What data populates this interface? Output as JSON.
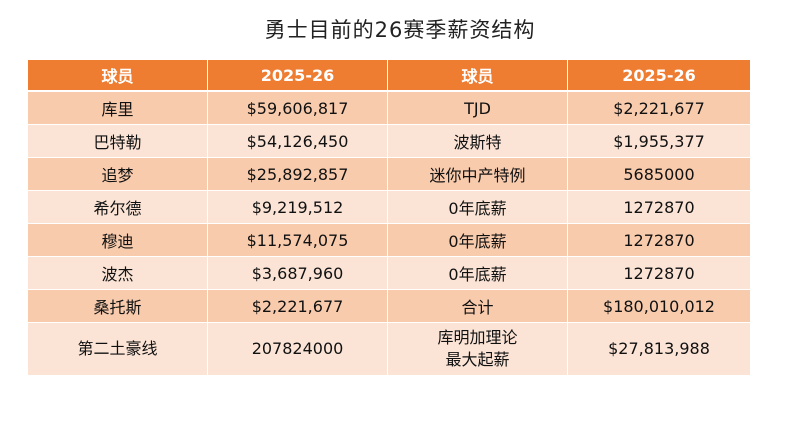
{
  "title": "勇士目前的26赛季薪资结构",
  "headers": [
    "球员",
    "2025-26",
    "球员",
    "2025-26"
  ],
  "rows": [
    [
      "库里",
      "$59,606,817",
      "TJD",
      "$2,221,677"
    ],
    [
      "巴特勒",
      "$54,126,450",
      "波斯特",
      "$1,955,377"
    ],
    [
      "追梦",
      "$25,892,857",
      "迷你中产特例",
      "5685000"
    ],
    [
      "希尔德",
      "$9,219,512",
      "0年底薪",
      "1272870"
    ],
    [
      "穆迪",
      "$11,574,075",
      "0年底薪",
      "1272870"
    ],
    [
      "波杰",
      "$3,687,960",
      "0年底薪",
      "1272870"
    ],
    [
      "桑托斯",
      "$2,221,677",
      "合计",
      "$180,010,012"
    ],
    [
      "第二土豪线",
      "207824000",
      [
        "库明加理论",
        "最大起薪"
      ],
      "$27,813,988"
    ]
  ]
}
